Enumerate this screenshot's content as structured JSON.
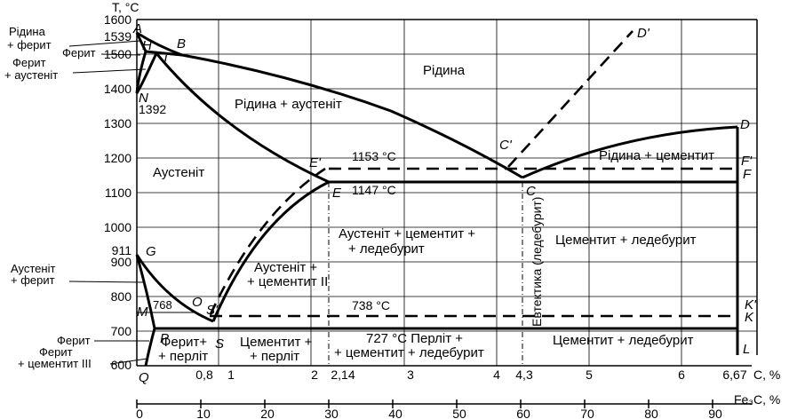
{
  "axis": {
    "y_label": "T, °C",
    "x_label": "C, %",
    "x2_label": "Fe₃C, %",
    "y_ticks": [
      "1600",
      "1500",
      "1400",
      "1300",
      "1200",
      "1100",
      "1000",
      "900",
      "800",
      "700",
      "600"
    ],
    "c_ticks": [
      {
        "label": "0,8"
      },
      {
        "label": "1"
      },
      {
        "label": "2"
      },
      {
        "label": "2,14"
      },
      {
        "label": "3"
      },
      {
        "label": "4"
      },
      {
        "label": "4,3"
      },
      {
        "label": "5"
      },
      {
        "label": "6"
      },
      {
        "label": "6,67"
      }
    ],
    "fe3c_ticks": [
      "0",
      "10",
      "20",
      "30",
      "40",
      "50",
      "60",
      "70",
      "80",
      "90"
    ]
  },
  "temps": {
    "t1539": "1539",
    "t1392": "1392",
    "t911": "911",
    "t1153": "1153 °C",
    "t1147": "1147 °C",
    "t738": "738 °C",
    "t768": "768"
  },
  "points": {
    "A": "A",
    "B": "B",
    "H": "H",
    "I": "I",
    "N": "N",
    "D": "D",
    "D_prime": "D'",
    "C": "C",
    "C_prime": "C'",
    "E": "E",
    "E_prime": "E'",
    "F": "F",
    "F_prime": "F'",
    "G": "G",
    "O": "O",
    "S": "S",
    "S_prime": "S'",
    "P": "P",
    "Q": "Q",
    "M": "M",
    "K": "K",
    "K_prime": "K'",
    "L": "L"
  },
  "regions": {
    "liquid": "Рідина",
    "liquid_austenite": "Рідина + аустеніт",
    "liquid_cementite": "Рідина + цементит",
    "austenite": "Аустеніт",
    "aust_cem_led_1": "Аустеніт + цементит +",
    "aust_cem_led_2": "+ ледебурит",
    "cem_led_upper": "Цементит + ледебурит",
    "aust_cem2_1": "Аустеніт +",
    "aust_cem2_2": "+ цементит II",
    "eutectic": "Евтектика (ледебурит)",
    "ferrite_pearlite_1": "Ферит+",
    "ferrite_pearlite_2": "+ перліт",
    "cem_pearlite_1": "Цементит +",
    "cem_pearlite_2": "+ перліт",
    "t727_line1": "727 °C Перліт +",
    "t727_line2": "+ цементит + ледебурит",
    "cem_led_lower": "Цементит + ледебурит"
  },
  "callouts": {
    "liquid_ferrite_1": "Рідина",
    "liquid_ferrite_2": "+ ферит",
    "ferrite_top": "Ферит",
    "ferrite_aust_1": "Ферит",
    "ferrite_aust_2": "+ аустеніт",
    "aust_ferrite_1": "Аустеніт",
    "aust_ferrite_2": "+ ферит",
    "ferrite_bottom": "Ферит",
    "ferrite_cem3_1": "Ферит",
    "ferrite_cem3_2": "+ цементит III"
  }
}
